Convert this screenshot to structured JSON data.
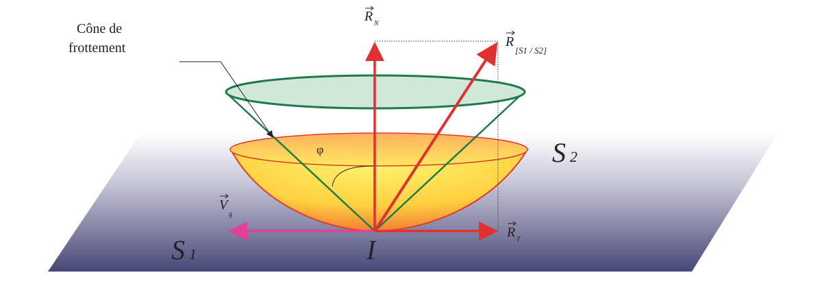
{
  "labels": {
    "cone_line1": "Cône de",
    "cone_line2": "frottement",
    "rn": "R",
    "rn_sub": "N",
    "r12": "R",
    "r12_sub": "[S1 / S2]",
    "rt": "R",
    "rt_sub": "T",
    "vg": "V",
    "vg_sub": "g",
    "phi": "φ",
    "s1": "S",
    "s1_sub": "1",
    "s2": "S",
    "s2_sub": "2",
    "point_i": "I"
  },
  "colors": {
    "force_arrow": "#e03030",
    "velocity_arrow": "#e0409a",
    "friction_cone": "#1e7a4a",
    "cone_fill": "#cfe8d8",
    "bowl_outline": "#e03a2a",
    "plane_dark": "#474778"
  }
}
